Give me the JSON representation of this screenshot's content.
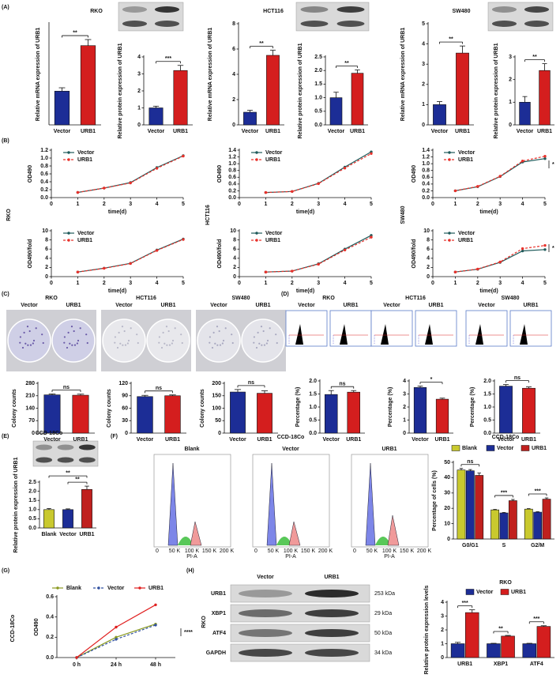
{
  "figure": {
    "panel_labels": [
      "(A)",
      "(B)",
      "(C)",
      "(D)",
      "(E)",
      "(F)",
      "(G)",
      "(H)"
    ],
    "b_rows": [
      "RKO",
      "HCT116",
      "SW480"
    ],
    "photo_columns": [
      "Vector",
      "URB1"
    ],
    "flow": {
      "title": "CCD-18Co",
      "samples": [
        "Blank",
        "Vector",
        "URB1"
      ],
      "xlabel": "PI-A",
      "xticks": [
        "0",
        "50 K",
        "100 K",
        "150 K",
        "200 K"
      ]
    },
    "g_row": "CCD-18Co",
    "h_blot": {
      "cell": "RKO",
      "columns": [
        "Vector",
        "URB1"
      ],
      "proteins": [
        "URB1",
        "XBP1",
        "ATF4",
        "GAPDH"
      ],
      "sizes": [
        "253 kDa",
        "29 kDa",
        "50 kDa",
        "34 kDa"
      ]
    }
  },
  "chart_data": [
    {
      "type": "bar",
      "title": "RKO",
      "ylabel": "Relative mRNA expression of URB1",
      "categories": [
        "Vector",
        "URB1"
      ],
      "values": [
        1.0,
        2.35
      ],
      "errors": [
        0.1,
        0.18
      ],
      "colors": [
        "#1c2d96",
        "#d41e1e"
      ],
      "ylim": [
        0,
        3
      ],
      "annotations": [
        "**"
      ]
    },
    {
      "type": "bar",
      "ylabel": "Relative protein expression of URB1",
      "categories": [
        "Vector",
        "URB1"
      ],
      "values": [
        1.0,
        3.2
      ],
      "errors": [
        0.1,
        0.3
      ],
      "colors": [
        "#1c2d96",
        "#d41e1e"
      ],
      "ylim": [
        0,
        4
      ],
      "yticks": [
        0,
        1,
        2,
        3,
        4
      ],
      "annotations": [
        "***"
      ]
    },
    {
      "type": "bar",
      "title": "HCT116",
      "ylabel": "Relative mRNA expression of URB1",
      "categories": [
        "Vector",
        "URB1"
      ],
      "values": [
        1.0,
        5.5
      ],
      "errors": [
        0.15,
        0.4
      ],
      "colors": [
        "#1c2d96",
        "#d41e1e"
      ],
      "ylim": [
        0,
        8
      ],
      "yticks": [
        0,
        2,
        4,
        6,
        8
      ],
      "annotations": [
        "**"
      ]
    },
    {
      "type": "bar",
      "ylabel": "Relative protein expression of URB1",
      "categories": [
        "Vector",
        "URB1"
      ],
      "values": [
        1.0,
        1.9
      ],
      "errors": [
        0.2,
        0.12
      ],
      "colors": [
        "#1c2d96",
        "#d41e1e"
      ],
      "ylim": [
        0,
        2.5
      ],
      "yticks": [
        {
          "value": 0,
          "label": "0.0"
        },
        0.5,
        {
          "value": 1,
          "label": "1.0"
        },
        1.5,
        {
          "value": 2,
          "label": "2.0"
        },
        2.5
      ],
      "annotations": [
        "**"
      ]
    },
    {
      "type": "bar",
      "title": "SW480",
      "ylabel": "Relative mRNA expression of URB1",
      "categories": [
        "Vector",
        "URB1"
      ],
      "values": [
        1.0,
        3.55
      ],
      "errors": [
        0.15,
        0.35
      ],
      "colors": [
        "#1c2d96",
        "#d41e1e"
      ],
      "ylim": [
        0,
        5
      ],
      "yticks": [
        0,
        1,
        2,
        3,
        4,
        5
      ],
      "annotations": [
        "**"
      ]
    },
    {
      "type": "bar",
      "ylabel": "Relative protein expression of URB1",
      "categories": [
        "Vector",
        "URB1"
      ],
      "values": [
        1.0,
        2.4
      ],
      "errors": [
        0.25,
        0.3
      ],
      "colors": [
        "#1c2d96",
        "#d41e1e"
      ],
      "ylim": [
        0,
        3
      ],
      "yticks": [
        0,
        1,
        2,
        3
      ],
      "annotations": [
        "**"
      ]
    },
    {
      "type": "line",
      "xlabel": "time(d)",
      "ylabel": "OD490",
      "x": [
        1,
        2,
        3,
        4,
        5
      ],
      "xlim": [
        0,
        5
      ],
      "xticks": [
        0,
        1,
        2,
        3,
        4,
        5
      ],
      "ylim": [
        0,
        1.2
      ],
      "yticks": [
        {
          "value": 0,
          "label": "0.0"
        },
        0.2,
        0.4,
        0.6,
        0.8,
        {
          "value": 1,
          "label": "1.0"
        },
        1.2
      ],
      "legend": "upper left",
      "series": [
        {
          "name": "Vector",
          "color": "#1e5a5a",
          "style": "solid",
          "values": [
            0.13,
            0.24,
            0.38,
            0.76,
            1.06
          ]
        },
        {
          "name": "URB1",
          "color": "#e8302a",
          "style": "dashed",
          "values": [
            0.13,
            0.24,
            0.37,
            0.74,
            1.05
          ]
        }
      ]
    },
    {
      "type": "line",
      "xlabel": "time(d)",
      "ylabel": "OD490/fold",
      "x": [
        1,
        2,
        3,
        4,
        5
      ],
      "xlim": [
        0,
        5
      ],
      "xticks": [
        0,
        1,
        2,
        3,
        4,
        5
      ],
      "ylim": [
        0,
        10
      ],
      "yticks": [
        0,
        2,
        4,
        6,
        8,
        10
      ],
      "legend": "upper left",
      "series": [
        {
          "name": "Vector",
          "color": "#1e5a5a",
          "style": "solid",
          "values": [
            1,
            1.85,
            2.9,
            5.8,
            8.2
          ]
        },
        {
          "name": "URB1",
          "color": "#e8302a",
          "style": "dashed",
          "values": [
            1,
            1.8,
            2.85,
            5.7,
            8.1
          ]
        }
      ]
    },
    {
      "type": "line",
      "xlabel": "time(d)",
      "ylabel": "OD490",
      "x": [
        1,
        2,
        3,
        4,
        5
      ],
      "xlim": [
        0,
        5
      ],
      "xticks": [
        0,
        1,
        2,
        3,
        4,
        5
      ],
      "ylim": [
        0,
        1.4
      ],
      "yticks": [
        {
          "value": 0,
          "label": "0.0"
        },
        0.2,
        0.4,
        0.6,
        0.8,
        {
          "value": 1,
          "label": "1.0"
        },
        1.2,
        1.4
      ],
      "legend": "upper left",
      "series": [
        {
          "name": "Vector",
          "color": "#1e5a5a",
          "style": "solid",
          "values": [
            0.15,
            0.18,
            0.42,
            0.9,
            1.35
          ]
        },
        {
          "name": "URB1",
          "color": "#e8302a",
          "style": "dashed",
          "values": [
            0.15,
            0.18,
            0.41,
            0.87,
            1.3
          ]
        }
      ]
    },
    {
      "type": "line",
      "xlabel": "time(d)",
      "ylabel": "OD490/fold",
      "x": [
        1,
        2,
        3,
        4,
        5
      ],
      "xlim": [
        0,
        5
      ],
      "xticks": [
        0,
        1,
        2,
        3,
        4,
        5
      ],
      "ylim": [
        0,
        10
      ],
      "yticks": [
        0,
        2,
        4,
        6,
        8,
        10
      ],
      "legend": "upper left",
      "series": [
        {
          "name": "Vector",
          "color": "#1e5a5a",
          "style": "solid",
          "values": [
            1,
            1.2,
            2.8,
            6,
            9
          ]
        },
        {
          "name": "URB1",
          "color": "#e8302a",
          "style": "dashed",
          "values": [
            1,
            1.2,
            2.7,
            5.8,
            8.6
          ]
        }
      ]
    },
    {
      "type": "line",
      "xlabel": "time(d)",
      "ylabel": "OD490",
      "x": [
        1,
        2,
        3,
        4,
        5
      ],
      "xlim": [
        0,
        5
      ],
      "xticks": [
        0,
        1,
        2,
        3,
        4,
        5
      ],
      "ylim": [
        0,
        1.4
      ],
      "yticks": [
        {
          "value": 0,
          "label": "0.0"
        },
        0.2,
        0.4,
        0.6,
        0.8,
        {
          "value": 1,
          "label": "1.0"
        },
        1.2,
        1.4
      ],
      "legend": "upper left",
      "annotations": [
        "*"
      ],
      "series": [
        {
          "name": "Vector",
          "color": "#1e5a5a",
          "style": "solid",
          "values": [
            0.2,
            0.32,
            0.62,
            1.05,
            1.15
          ]
        },
        {
          "name": "URB1",
          "color": "#e8302a",
          "style": "dashed",
          "values": [
            0.2,
            0.33,
            0.63,
            1.08,
            1.22
          ]
        }
      ]
    },
    {
      "type": "line",
      "xlabel": "time(d)",
      "ylabel": "OD490/fold",
      "x": [
        1,
        2,
        3,
        4,
        5
      ],
      "xlim": [
        0,
        5
      ],
      "xticks": [
        0,
        1,
        2,
        3,
        4,
        5
      ],
      "ylim": [
        0,
        10
      ],
      "yticks": [
        0,
        2,
        4,
        6,
        8,
        10
      ],
      "legend": "upper left",
      "annotations": [
        "*"
      ],
      "series": [
        {
          "name": "Vector",
          "color": "#1e5a5a",
          "style": "solid",
          "values": [
            1,
            1.6,
            3.1,
            5.6,
            5.9
          ]
        },
        {
          "name": "URB1",
          "color": "#e8302a",
          "style": "dashed",
          "values": [
            1,
            1.65,
            3.2,
            6.1,
            6.8
          ]
        }
      ]
    },
    {
      "type": "bar",
      "title": "RKO",
      "ylabel": "Colony counts",
      "categories": [
        "Vector",
        "URB1"
      ],
      "values": [
        215,
        213
      ],
      "errors": [
        5,
        6
      ],
      "colors": [
        "#1c2d96",
        "#d41e1e"
      ],
      "ylim": [
        0,
        280
      ],
      "yticks": [
        0,
        70,
        140,
        210,
        280
      ],
      "annotations": [
        "ns"
      ]
    },
    {
      "type": "bar",
      "title": "HCT116",
      "ylabel": "Colony counts",
      "categories": [
        "Vector",
        "URB1"
      ],
      "values": [
        88,
        90
      ],
      "errors": [
        3,
        2
      ],
      "colors": [
        "#1c2d96",
        "#d41e1e"
      ],
      "ylim": [
        0,
        120
      ],
      "yticks": [
        0,
        30,
        60,
        90,
        120
      ],
      "annotations": [
        "ns"
      ]
    },
    {
      "type": "bar",
      "title": "SW480",
      "ylabel": "Colony counts",
      "categories": [
        "Vector",
        "URB1"
      ],
      "values": [
        165,
        160
      ],
      "errors": [
        10,
        10
      ],
      "colors": [
        "#1c2d96",
        "#d41e1e"
      ],
      "ylim": [
        0,
        200
      ],
      "yticks": [
        0,
        50,
        100,
        150,
        200
      ],
      "annotations": [
        "ns"
      ]
    },
    {
      "type": "bar",
      "title": "RKO",
      "ylabel": "Percentage (%)",
      "categories": [
        "Vector",
        "URB1"
      ],
      "values": [
        1.48,
        1.57
      ],
      "errors": [
        0.15,
        0.06
      ],
      "colors": [
        "#1c2d96",
        "#d41e1e"
      ],
      "ylim": [
        0,
        2
      ],
      "yticks": [
        {
          "value": 0,
          "label": "0.0"
        },
        0.5,
        {
          "value": 1,
          "label": "1.0"
        },
        1.5,
        {
          "value": 2,
          "label": "2.0"
        }
      ],
      "annotations": [
        "ns"
      ]
    },
    {
      "type": "bar",
      "title": "HCT116",
      "ylabel": "Percentage (%)",
      "categories": [
        "Vector",
        "URB1"
      ],
      "values": [
        3.5,
        2.6
      ],
      "errors": [
        0.1,
        0.08
      ],
      "colors": [
        "#1c2d96",
        "#d41e1e"
      ],
      "ylim": [
        0,
        4
      ],
      "yticks": [
        0,
        1,
        2,
        3,
        4
      ],
      "annotations": [
        "*"
      ]
    },
    {
      "type": "bar",
      "title": "SW480",
      "ylabel": "Percentage (%)",
      "categories": [
        "Vector",
        "URB1"
      ],
      "values": [
        1.8,
        1.72
      ],
      "errors": [
        0.06,
        0.05
      ],
      "colors": [
        "#1c2d96",
        "#d41e1e"
      ],
      "ylim": [
        0,
        2
      ],
      "yticks": [
        {
          "value": 0,
          "label": "0.0"
        },
        0.5,
        {
          "value": 1,
          "label": "1.0"
        },
        1.5,
        {
          "value": 2,
          "label": "2.0"
        }
      ],
      "annotations": [
        "ns"
      ]
    },
    {
      "type": "bar",
      "title": "CCD-18Co",
      "ylabel": "Relative protein expression of URB1",
      "categories": [
        "Blank",
        "Vector",
        "URB1"
      ],
      "values": [
        1.0,
        1.0,
        2.1
      ],
      "errors": [
        0.06,
        0.04,
        0.18
      ],
      "colors": [
        "#c9c92e",
        "#1c2d96",
        "#c0201e"
      ],
      "ylim": [
        0,
        2.5
      ],
      "yticks": [
        {
          "value": 0,
          "label": "0.0"
        },
        0.5,
        {
          "value": 1,
          "label": "1.0"
        },
        1.5,
        {
          "value": 2,
          "label": "2.0"
        },
        2.5
      ],
      "annotations": [
        "**",
        "**"
      ]
    },
    {
      "type": "bar",
      "title": "CCD-18Co",
      "ylabel": "Percentage of cells (%)",
      "categories": [
        "G0/G1",
        "S",
        "G2/M"
      ],
      "ylim": [
        0,
        50
      ],
      "yticks": [
        0,
        10,
        20,
        30,
        40,
        50
      ],
      "legend": "top",
      "annotations": [
        "ns",
        "***",
        "***"
      ],
      "series": [
        {
          "name": "Blank",
          "color": "#c9c92e",
          "values": [
            45,
            19,
            19.5
          ],
          "errors": [
            1,
            0.3,
            0.3
          ]
        },
        {
          "name": "Vector",
          "color": "#1c2d96",
          "values": [
            44.5,
            17,
            17.5
          ],
          "errors": [
            0.8,
            0.3,
            0.3
          ]
        },
        {
          "name": "URB1",
          "color": "#c0201e",
          "values": [
            41.5,
            25,
            26
          ],
          "errors": [
            1.5,
            0.8,
            0.8
          ]
        }
      ]
    },
    {
      "type": "line",
      "ylabel": "OD490",
      "categories": [
        "0 h",
        "24 h",
        "48 h"
      ],
      "ylim": [
        0,
        0.6
      ],
      "yticks": [
        {
          "value": 0,
          "label": "0.0"
        },
        0.2,
        0.4,
        0.6
      ],
      "legend": "top",
      "annotations": [
        "****"
      ],
      "series": [
        {
          "name": "Blank",
          "color": "#8a9a20",
          "style": "solid",
          "values": [
            0,
            0.2,
            0.33
          ]
        },
        {
          "name": "Vector",
          "color": "#3050a0",
          "style": "dashed",
          "values": [
            0,
            0.18,
            0.32
          ]
        },
        {
          "name": "URB1",
          "color": "#e02020",
          "style": "solid",
          "values": [
            0,
            0.3,
            0.52
          ]
        }
      ]
    },
    {
      "type": "bar",
      "title": "RKO",
      "ylabel": "Relative protein expression levels",
      "categories": [
        "URB1",
        "XBP1",
        "ATF4"
      ],
      "ylim": [
        0,
        4
      ],
      "yticks": [
        0,
        1,
        2,
        3,
        4
      ],
      "legend": "top",
      "annotations": [
        "***",
        "**",
        "***"
      ],
      "series": [
        {
          "name": "Vector",
          "color": "#1c2d96",
          "values": [
            1.0,
            1.0,
            1.0
          ],
          "errors": [
            0.1,
            0.03,
            0.03
          ]
        },
        {
          "name": "URB1",
          "color": "#d41e1e",
          "values": [
            3.25,
            1.55,
            2.25
          ],
          "errors": [
            0.2,
            0.05,
            0.05
          ]
        }
      ]
    }
  ]
}
